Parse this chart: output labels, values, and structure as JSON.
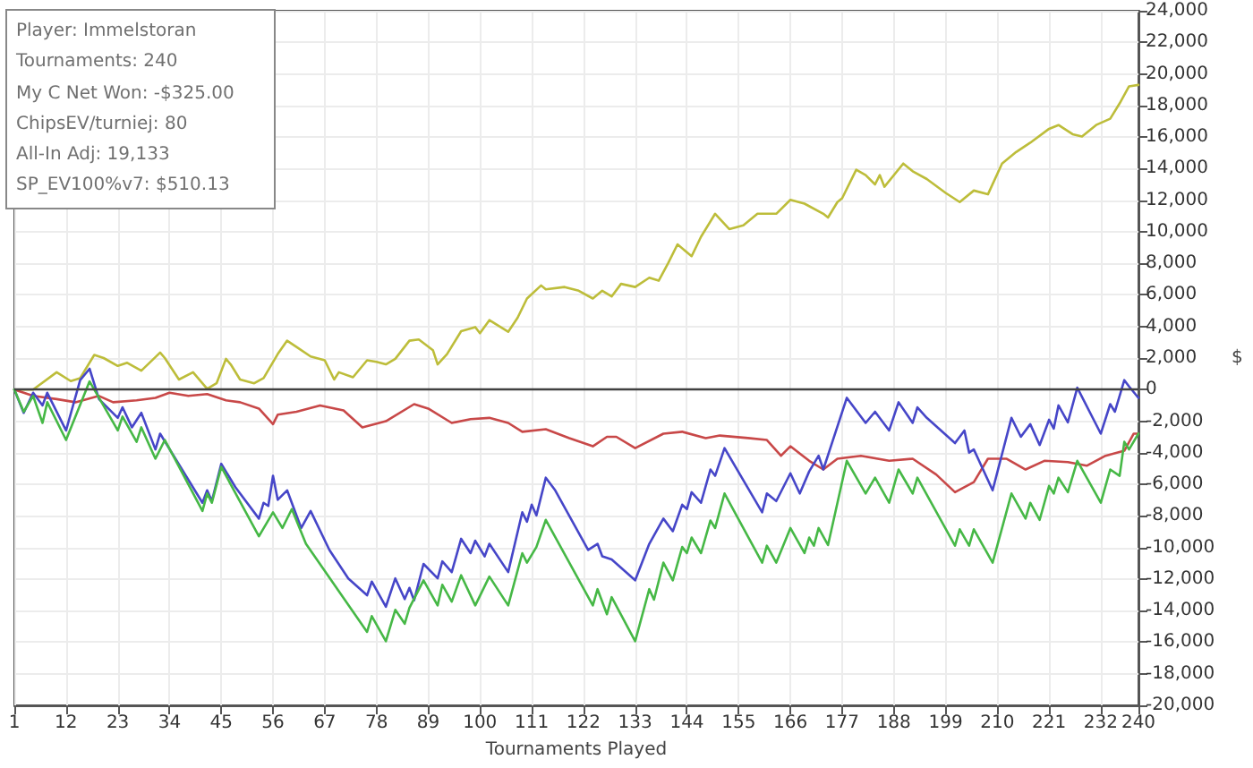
{
  "chart_data": {
    "type": "line",
    "xlabel": "Tournaments Played",
    "ylabel": "$",
    "annotations": [
      "Player: Immelstoran",
      "Tournaments: 240",
      "My C Net Won: -$325.00",
      "ChipsEV/turniej: 80",
      "All-In Adj: 19,133",
      "SP_EV100%v7: $510.13"
    ],
    "xlim": [
      1,
      240
    ],
    "xticks": [
      1,
      12,
      23,
      34,
      45,
      56,
      67,
      78,
      89,
      100,
      111,
      122,
      133,
      144,
      155,
      166,
      177,
      188,
      199,
      210,
      221,
      232,
      240
    ],
    "ylim": [
      -20000,
      24000
    ],
    "yticks": [
      {
        "value": -20000,
        "label": "-20,000"
      },
      {
        "value": -18000,
        "label": "-18,000"
      },
      {
        "value": -16000,
        "label": "-16,000"
      },
      {
        "value": -14000,
        "label": "-14,000"
      },
      {
        "value": -12000,
        "label": "-12,000"
      },
      {
        "value": -10000,
        "label": "-10,000"
      },
      {
        "value": -8000,
        "label": "-8,000"
      },
      {
        "value": -6000,
        "label": "-6,000"
      },
      {
        "value": -4000,
        "label": "-4,000"
      },
      {
        "value": -2000,
        "label": "-2,000"
      },
      0,
      {
        "value": 2000,
        "label": "2,000"
      },
      {
        "value": 4000,
        "label": "4,000"
      },
      {
        "value": 6000,
        "label": "6,000"
      },
      {
        "value": 8000,
        "label": "8,000"
      },
      {
        "value": 10000,
        "label": "10,000"
      },
      {
        "value": 12000,
        "label": "12,000"
      },
      {
        "value": 14000,
        "label": "14,000"
      },
      {
        "value": 16000,
        "label": "16,000"
      },
      {
        "value": 18000,
        "label": "18,000"
      },
      {
        "value": 20000,
        "label": "20,000"
      },
      {
        "value": 22000,
        "label": "22,000"
      },
      {
        "value": 24000,
        "label": "24,000"
      }
    ],
    "grid": true,
    "marker": "none",
    "line_style": "solid",
    "ref_lines": [
      {
        "axis": "y",
        "value": 0,
        "color": "#404040"
      }
    ],
    "series": [
      {
        "color": "#bdbd3a",
        "x": [
          1,
          5,
          10,
          13,
          15,
          18,
          20,
          23,
          25,
          28,
          32,
          33,
          36,
          39,
          42,
          44,
          46,
          47,
          49,
          52,
          54,
          57,
          59,
          61,
          64,
          67,
          69,
          70,
          73,
          76,
          78,
          80,
          82,
          85,
          87,
          90,
          91,
          93,
          96,
          99,
          100,
          102,
          106,
          108,
          110,
          113,
          114,
          118,
          121,
          124,
          126,
          128,
          130,
          133,
          136,
          138,
          140,
          142,
          145,
          147,
          150,
          153,
          156,
          159,
          163,
          166,
          169,
          173,
          174,
          176,
          177,
          180,
          182,
          184,
          185,
          186,
          190,
          192,
          195,
          199,
          202,
          205,
          208,
          211,
          214,
          217,
          221,
          223,
          226,
          228,
          231,
          234,
          236,
          238,
          240
        ],
        "values": [
          0,
          0,
          1100,
          540,
          730,
          2200,
          2000,
          1500,
          1700,
          1200,
          2350,
          2000,
          640,
          1100,
          50,
          400,
          1950,
          1600,
          640,
          400,
          730,
          2250,
          3100,
          2700,
          2100,
          1860,
          640,
          1100,
          780,
          1860,
          1760,
          1600,
          1950,
          3100,
          3180,
          2500,
          1600,
          2250,
          3700,
          3960,
          3570,
          4400,
          3660,
          4550,
          5770,
          6600,
          6350,
          6500,
          6260,
          5770,
          6260,
          5900,
          6700,
          6500,
          7090,
          6900,
          8000,
          9200,
          8450,
          9680,
          11140,
          10170,
          10400,
          11140,
          11140,
          12020,
          11780,
          11140,
          10900,
          11880,
          12120,
          13930,
          13590,
          13000,
          13590,
          12850,
          14320,
          13830,
          13340,
          12460,
          11880,
          12610,
          12370,
          14320,
          15050,
          15640,
          16520,
          16760,
          16180,
          16030,
          16760,
          17160,
          18130,
          19210,
          19300
        ]
      },
      {
        "color": "#c84848",
        "x": [
          1,
          5,
          10,
          14,
          19,
          22,
          27,
          31,
          34,
          38,
          42,
          46,
          49,
          53,
          56,
          57,
          61,
          66,
          71,
          75,
          80,
          86,
          89,
          94,
          98,
          102,
          106,
          109,
          114,
          119,
          124,
          127,
          129,
          133,
          139,
          143,
          148,
          151,
          157,
          161,
          164,
          166,
          170,
          173,
          176,
          181,
          187,
          192,
          197,
          201,
          205,
          208,
          212,
          216,
          220,
          225,
          229,
          233,
          237,
          239,
          240
        ],
        "values": [
          0,
          -400,
          -600,
          -800,
          -400,
          -800,
          -680,
          -520,
          -200,
          -400,
          -280,
          -680,
          -800,
          -1200,
          -2190,
          -1590,
          -1400,
          -1000,
          -1320,
          -2390,
          -2000,
          -920,
          -1200,
          -2110,
          -1870,
          -1790,
          -2110,
          -2670,
          -2510,
          -3070,
          -3590,
          -2990,
          -2990,
          -3710,
          -2790,
          -2670,
          -3070,
          -2910,
          -3070,
          -3190,
          -4190,
          -3590,
          -4510,
          -5060,
          -4380,
          -4190,
          -4510,
          -4380,
          -5380,
          -6500,
          -5860,
          -4380,
          -4380,
          -5060,
          -4510,
          -4590,
          -4820,
          -4190,
          -3870,
          -2790,
          -2790
        ]
      },
      {
        "color": "#4646c8",
        "x": [
          1,
          3,
          5,
          7,
          8,
          12,
          15,
          17,
          19,
          23,
          24,
          26,
          28,
          31,
          32,
          41,
          42,
          43,
          45,
          48,
          53,
          54,
          55,
          56,
          57,
          59,
          62,
          64,
          68,
          72,
          76,
          77,
          80,
          82,
          84,
          85,
          86,
          88,
          91,
          92,
          94,
          96,
          98,
          99,
          101,
          102,
          106,
          109,
          110,
          111,
          112,
          114,
          116,
          123,
          125,
          126,
          128,
          133,
          136,
          139,
          141,
          143,
          144,
          145,
          147,
          149,
          150,
          152,
          160,
          161,
          163,
          166,
          168,
          170,
          172,
          173,
          178,
          182,
          184,
          187,
          189,
          192,
          193,
          195,
          201,
          203,
          204,
          205,
          209,
          213,
          215,
          217,
          219,
          221,
          222,
          223,
          225,
          227,
          232,
          234,
          235,
          237,
          238,
          240
        ],
        "values": [
          0,
          -1470,
          -200,
          -1000,
          -200,
          -2590,
          600,
          1320,
          -600,
          -1790,
          -1120,
          -2390,
          -1470,
          -3790,
          -2790,
          -7170,
          -6380,
          -7060,
          -4700,
          -6180,
          -8170,
          -7170,
          -7370,
          -5460,
          -6980,
          -6380,
          -8770,
          -7690,
          -10160,
          -11960,
          -13030,
          -12160,
          -13750,
          -11960,
          -13270,
          -12560,
          -13350,
          -11040,
          -11960,
          -10880,
          -11560,
          -9450,
          -10360,
          -9570,
          -10560,
          -9770,
          -11560,
          -7770,
          -8370,
          -7290,
          -7970,
          -5580,
          -6380,
          -10160,
          -9770,
          -10560,
          -10760,
          -12080,
          -9770,
          -8170,
          -8970,
          -7290,
          -7570,
          -6500,
          -7170,
          -5060,
          -5460,
          -3710,
          -7770,
          -6580,
          -7060,
          -5300,
          -6580,
          -5180,
          -4190,
          -5060,
          -520,
          -2110,
          -1400,
          -2590,
          -800,
          -2110,
          -1120,
          -1790,
          -3390,
          -2590,
          -3990,
          -3790,
          -6380,
          -1790,
          -2990,
          -2190,
          -3510,
          -1910,
          -2470,
          -1000,
          -2070,
          120,
          -2790,
          -920,
          -1400,
          600,
          200,
          -520
        ]
      },
      {
        "color": "#46b846",
        "x": [
          1,
          3,
          5,
          7,
          8,
          12,
          17,
          23,
          24,
          27,
          28,
          31,
          33,
          41,
          42,
          43,
          45,
          53,
          56,
          58,
          60,
          63,
          76,
          77,
          80,
          82,
          84,
          85,
          88,
          91,
          92,
          94,
          96,
          99,
          102,
          106,
          109,
          110,
          112,
          114,
          124,
          125,
          127,
          128,
          133,
          136,
          137,
          139,
          141,
          143,
          144,
          145,
          147,
          149,
          150,
          152,
          160,
          161,
          163,
          166,
          169,
          170,
          171,
          172,
          174,
          178,
          182,
          184,
          187,
          189,
          192,
          193,
          201,
          202,
          204,
          205,
          209,
          213,
          216,
          217,
          219,
          221,
          222,
          223,
          225,
          227,
          232,
          234,
          236,
          237,
          238,
          240
        ],
        "values": [
          0,
          -1400,
          -400,
          -2110,
          -800,
          -3190,
          520,
          -2590,
          -1710,
          -3310,
          -2390,
          -4380,
          -3190,
          -7690,
          -6580,
          -7170,
          -4900,
          -9290,
          -7770,
          -8770,
          -7570,
          -9770,
          -15350,
          -14350,
          -15940,
          -13950,
          -14830,
          -13830,
          -12080,
          -13670,
          -12360,
          -13430,
          -11760,
          -13670,
          -11840,
          -13670,
          -10360,
          -10960,
          -9970,
          -8250,
          -13670,
          -12640,
          -14230,
          -13150,
          -15940,
          -12640,
          -13310,
          -10960,
          -12080,
          -9970,
          -10360,
          -9370,
          -10360,
          -8290,
          -8770,
          -6580,
          -10960,
          -9890,
          -10960,
          -8770,
          -10360,
          -9370,
          -9890,
          -8770,
          -9850,
          -4510,
          -6580,
          -5580,
          -7170,
          -5060,
          -6580,
          -5580,
          -9890,
          -8850,
          -9890,
          -8850,
          -10960,
          -6580,
          -8170,
          -7170,
          -8250,
          -6100,
          -6580,
          -5580,
          -6500,
          -4510,
          -7170,
          -5060,
          -5460,
          -3310,
          -3790,
          -2790
        ]
      }
    ]
  }
}
